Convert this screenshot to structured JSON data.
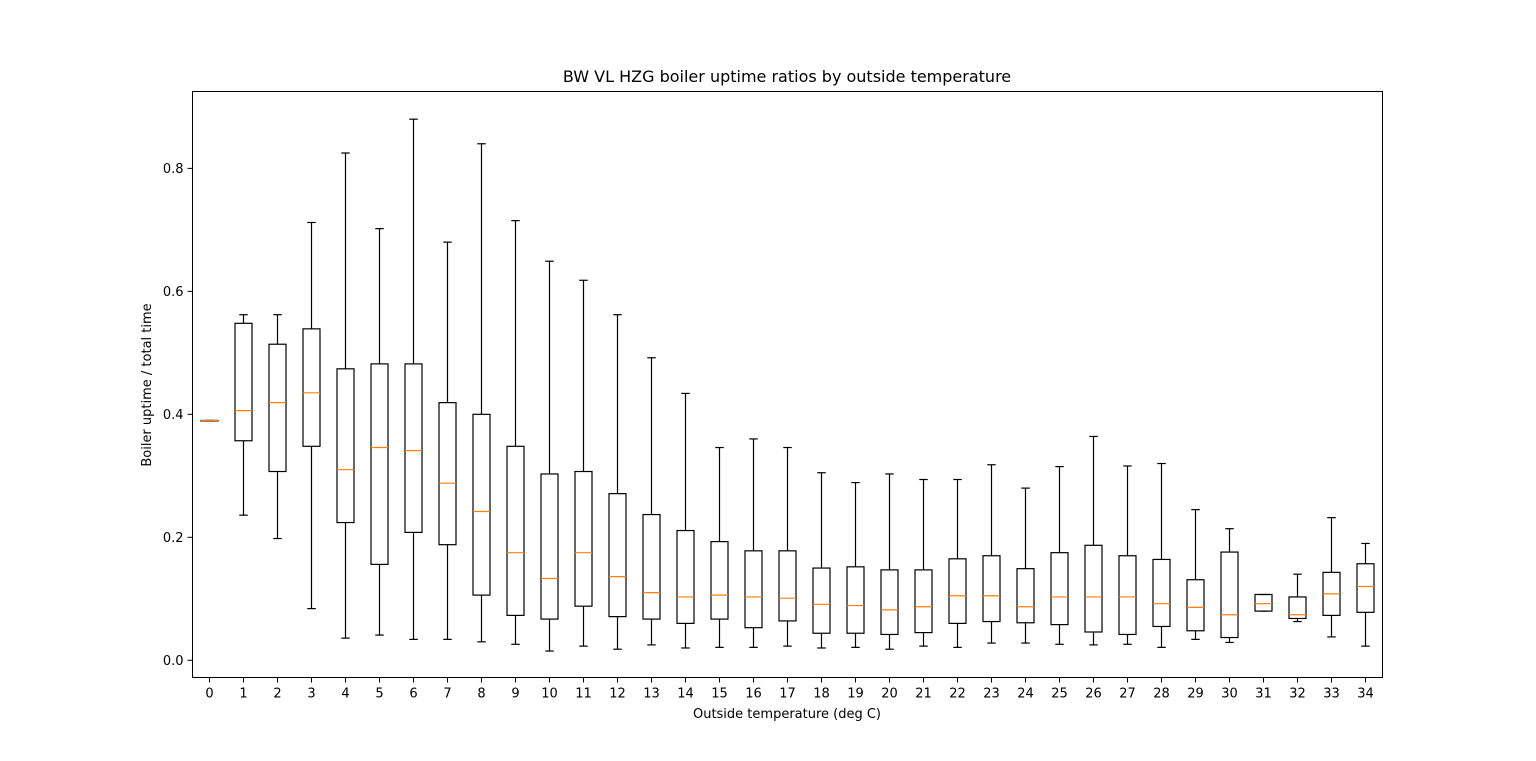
{
  "chart_data": {
    "type": "box",
    "title": "BW VL HZG boiler uptime ratios by outside temperature",
    "xlabel": "Outside temperature (deg C)",
    "ylabel": "Boiler uptime / total time",
    "ylim": [
      -0.028,
      0.925
    ],
    "yticks": [
      "0.0",
      "0.2",
      "0.4",
      "0.6",
      "0.8"
    ],
    "grid": false,
    "colors": {
      "box": "#000000",
      "median": "#ff7f0e"
    },
    "categories": [
      "0",
      "1",
      "2",
      "3",
      "4",
      "5",
      "6",
      "7",
      "8",
      "9",
      "10",
      "11",
      "12",
      "13",
      "14",
      "15",
      "16",
      "17",
      "18",
      "19",
      "20",
      "21",
      "22",
      "23",
      "24",
      "25",
      "26",
      "27",
      "28",
      "29",
      "30",
      "31",
      "32",
      "33",
      "34"
    ],
    "boxes": [
      {
        "whislo": 0.39,
        "q1": 0.39,
        "med": 0.39,
        "q3": 0.39,
        "whishi": 0.39
      },
      {
        "whislo": 0.236,
        "q1": 0.357,
        "med": 0.406,
        "q3": 0.548,
        "whishi": 0.562
      },
      {
        "whislo": 0.198,
        "q1": 0.307,
        "med": 0.419,
        "q3": 0.514,
        "whishi": 0.562
      },
      {
        "whislo": 0.084,
        "q1": 0.348,
        "med": 0.435,
        "q3": 0.539,
        "whishi": 0.712
      },
      {
        "whislo": 0.036,
        "q1": 0.224,
        "med": 0.31,
        "q3": 0.474,
        "whishi": 0.825
      },
      {
        "whislo": 0.041,
        "q1": 0.156,
        "med": 0.346,
        "q3": 0.482,
        "whishi": 0.702
      },
      {
        "whislo": 0.034,
        "q1": 0.208,
        "med": 0.341,
        "q3": 0.482,
        "whishi": 0.88
      },
      {
        "whislo": 0.034,
        "q1": 0.188,
        "med": 0.288,
        "q3": 0.419,
        "whishi": 0.68
      },
      {
        "whislo": 0.03,
        "q1": 0.106,
        "med": 0.242,
        "q3": 0.4,
        "whishi": 0.84
      },
      {
        "whislo": 0.026,
        "q1": 0.073,
        "med": 0.175,
        "q3": 0.348,
        "whishi": 0.715
      },
      {
        "whislo": 0.015,
        "q1": 0.067,
        "med": 0.133,
        "q3": 0.303,
        "whishi": 0.649
      },
      {
        "whislo": 0.023,
        "q1": 0.088,
        "med": 0.175,
        "q3": 0.307,
        "whishi": 0.618
      },
      {
        "whislo": 0.018,
        "q1": 0.071,
        "med": 0.136,
        "q3": 0.271,
        "whishi": 0.562
      },
      {
        "whislo": 0.025,
        "q1": 0.067,
        "med": 0.11,
        "q3": 0.237,
        "whishi": 0.492
      },
      {
        "whislo": 0.02,
        "q1": 0.06,
        "med": 0.103,
        "q3": 0.211,
        "whishi": 0.434
      },
      {
        "whislo": 0.021,
        "q1": 0.067,
        "med": 0.106,
        "q3": 0.193,
        "whishi": 0.346
      },
      {
        "whislo": 0.021,
        "q1": 0.053,
        "med": 0.103,
        "q3": 0.178,
        "whishi": 0.36
      },
      {
        "whislo": 0.023,
        "q1": 0.064,
        "med": 0.101,
        "q3": 0.178,
        "whishi": 0.346
      },
      {
        "whislo": 0.02,
        "q1": 0.044,
        "med": 0.091,
        "q3": 0.15,
        "whishi": 0.305
      },
      {
        "whislo": 0.021,
        "q1": 0.044,
        "med": 0.089,
        "q3": 0.152,
        "whishi": 0.289
      },
      {
        "whislo": 0.018,
        "q1": 0.042,
        "med": 0.082,
        "q3": 0.147,
        "whishi": 0.303
      },
      {
        "whislo": 0.023,
        "q1": 0.045,
        "med": 0.087,
        "q3": 0.147,
        "whishi": 0.294
      },
      {
        "whislo": 0.021,
        "q1": 0.06,
        "med": 0.105,
        "q3": 0.165,
        "whishi": 0.294
      },
      {
        "whislo": 0.028,
        "q1": 0.063,
        "med": 0.105,
        "q3": 0.17,
        "whishi": 0.318
      },
      {
        "whislo": 0.028,
        "q1": 0.061,
        "med": 0.087,
        "q3": 0.149,
        "whishi": 0.28
      },
      {
        "whislo": 0.026,
        "q1": 0.058,
        "med": 0.103,
        "q3": 0.175,
        "whishi": 0.315
      },
      {
        "whislo": 0.025,
        "q1": 0.046,
        "med": 0.103,
        "q3": 0.187,
        "whishi": 0.364
      },
      {
        "whislo": 0.026,
        "q1": 0.042,
        "med": 0.103,
        "q3": 0.17,
        "whishi": 0.316
      },
      {
        "whislo": 0.021,
        "q1": 0.055,
        "med": 0.092,
        "q3": 0.164,
        "whishi": 0.32
      },
      {
        "whislo": 0.034,
        "q1": 0.048,
        "med": 0.086,
        "q3": 0.131,
        "whishi": 0.245
      },
      {
        "whislo": 0.029,
        "q1": 0.037,
        "med": 0.074,
        "q3": 0.176,
        "whishi": 0.214
      },
      {
        "whislo": 0.08,
        "q1": 0.08,
        "med": 0.092,
        "q3": 0.107,
        "whishi": 0.107
      },
      {
        "whislo": 0.063,
        "q1": 0.068,
        "med": 0.074,
        "q3": 0.103,
        "whishi": 0.14
      },
      {
        "whislo": 0.038,
        "q1": 0.073,
        "med": 0.108,
        "q3": 0.143,
        "whishi": 0.232
      },
      {
        "whislo": 0.023,
        "q1": 0.078,
        "med": 0.12,
        "q3": 0.157,
        "whishi": 0.19
      }
    ]
  }
}
